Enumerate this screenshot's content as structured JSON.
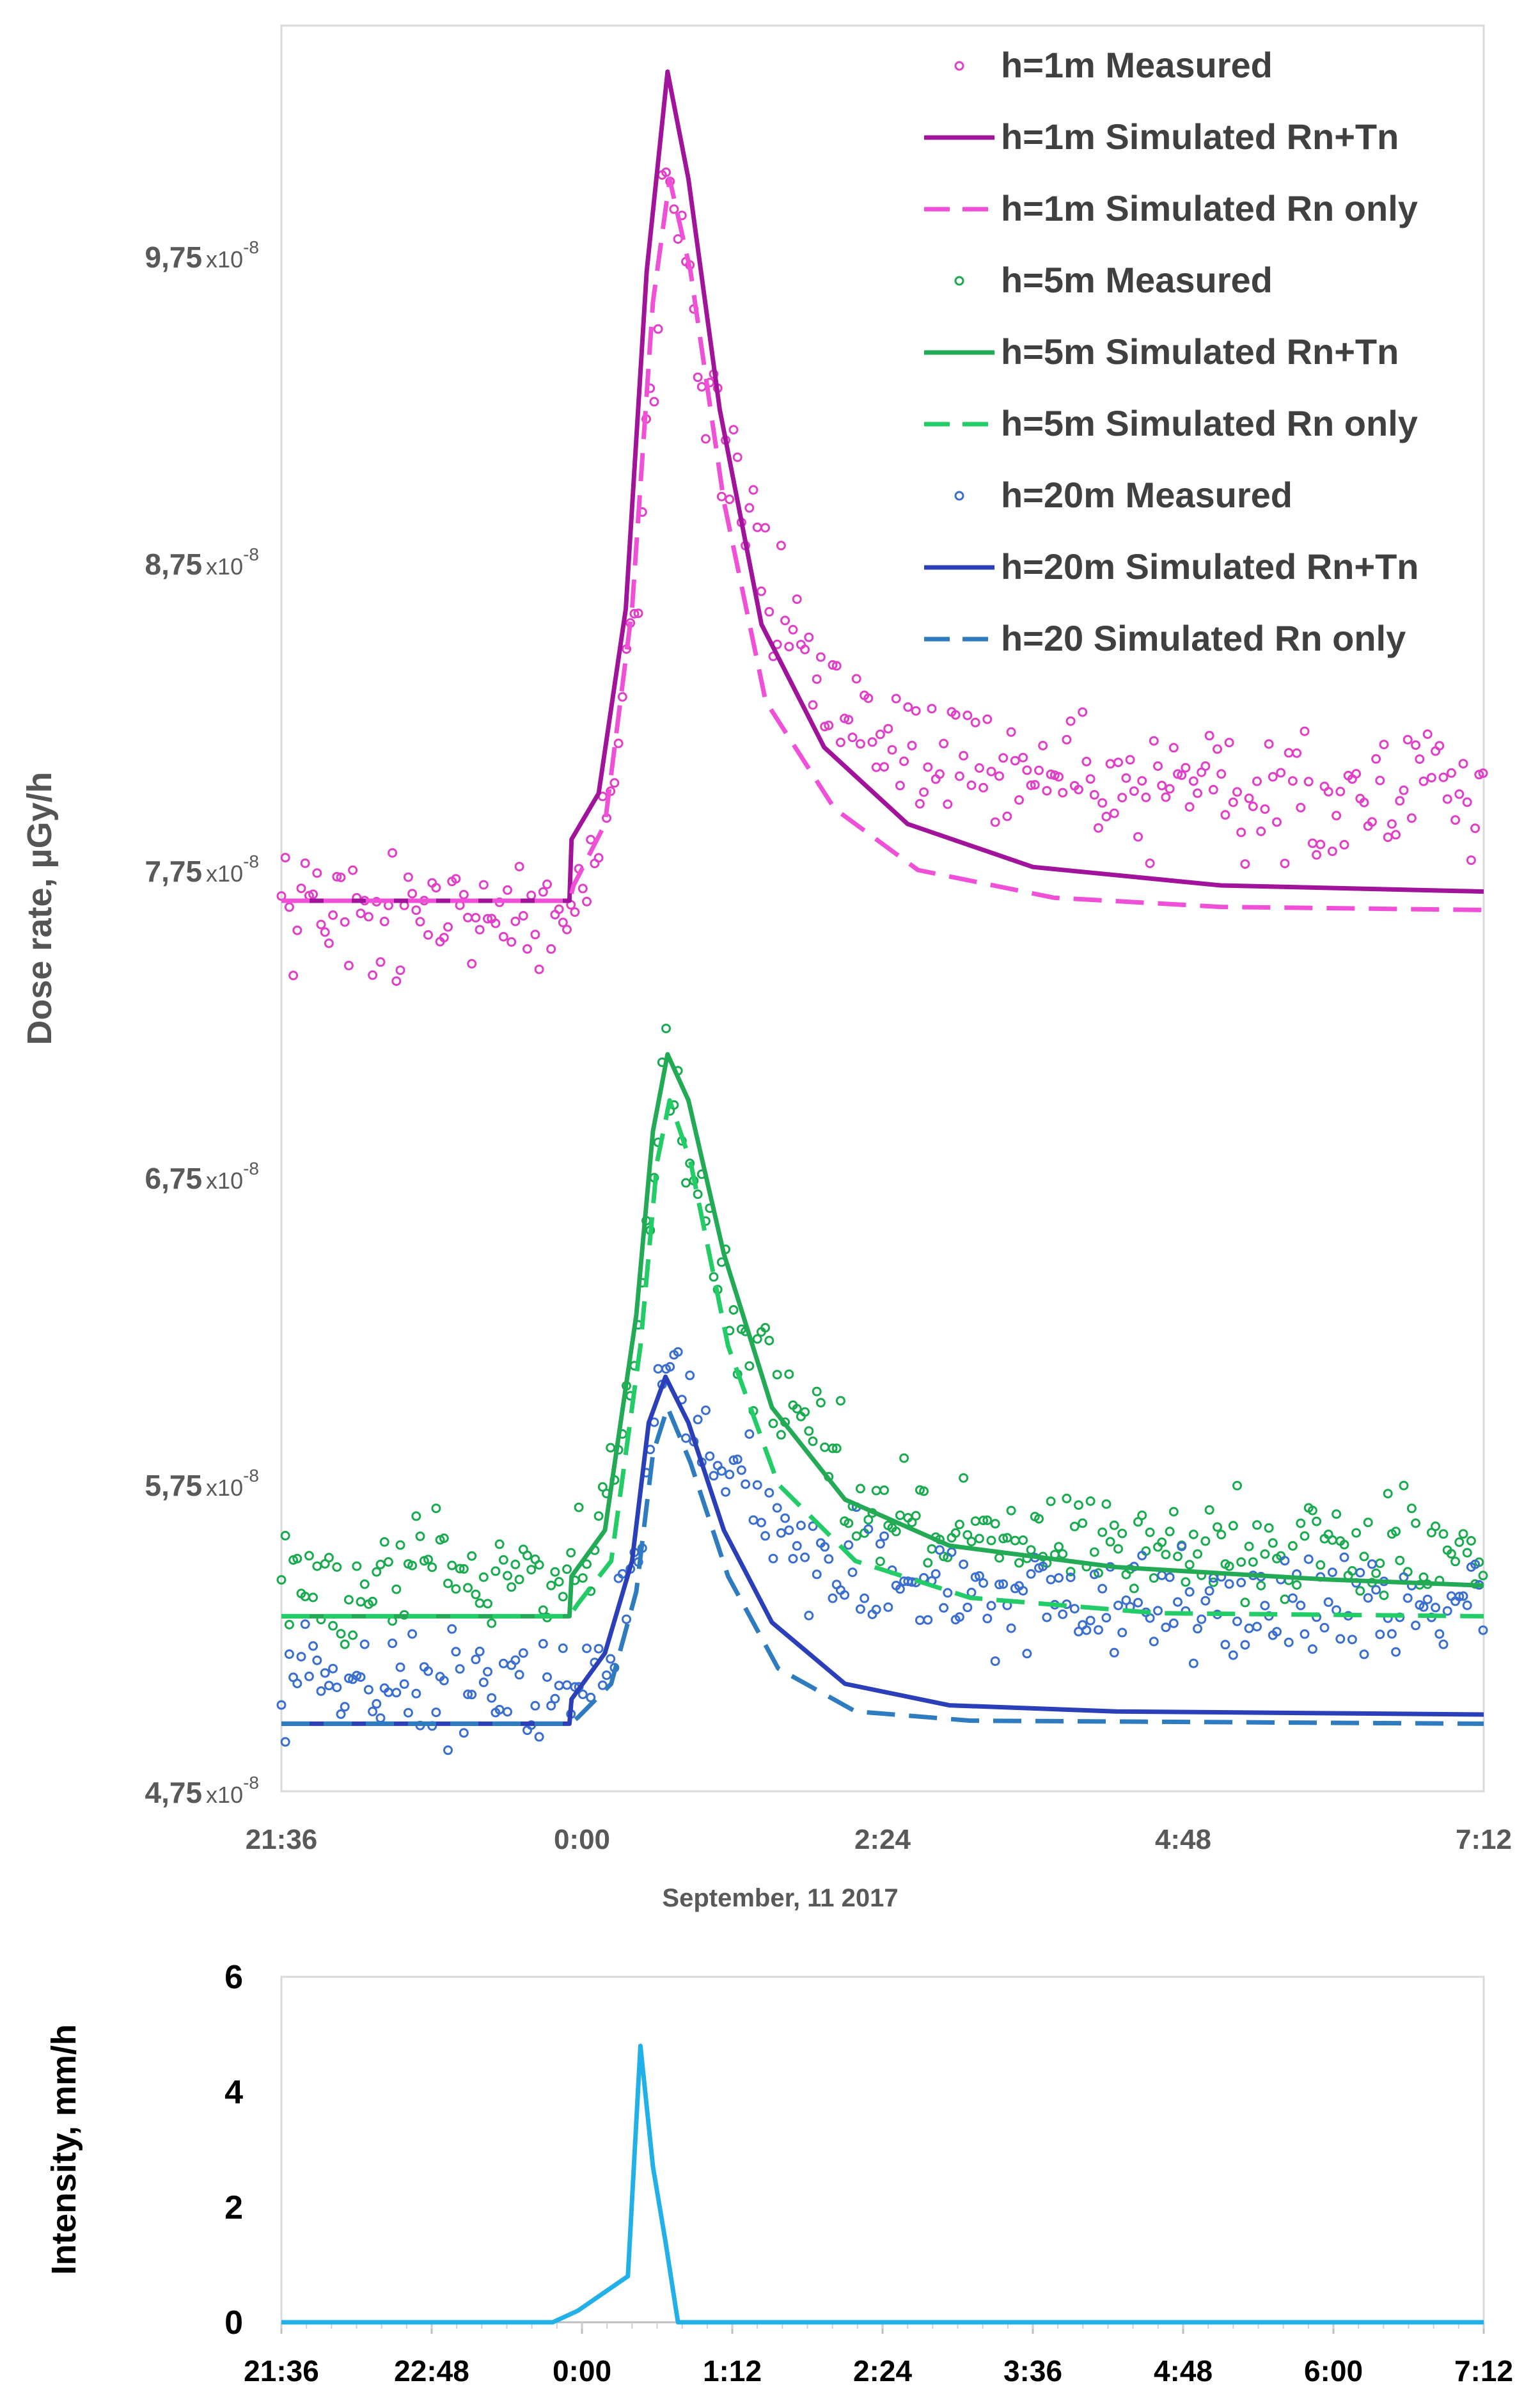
{
  "chart_data": [
    {
      "type": "scatter",
      "title": "",
      "xlabel": "September, 11 2017",
      "ylabel": "Dose rate, µGy/h",
      "x_unit": "minutes since 21:36",
      "xlim": [
        0,
        576
      ],
      "ylim": [
        4.75e-08,
        1.05e-07
      ],
      "x_ticks": [
        "21:36",
        "0:00",
        "2:24",
        "4:48",
        "7:12"
      ],
      "y_tick_labels": [
        {
          "value": 4.75e-08,
          "mantissa": "4,75",
          "times": "x10",
          "exp": "-8"
        },
        {
          "value": 5.75e-08,
          "mantissa": "5,75",
          "times": "x10",
          "exp": "-8"
        },
        {
          "value": 6.75e-08,
          "mantissa": "6,75",
          "times": "x10",
          "exp": "-8"
        },
        {
          "value": 7.75e-08,
          "mantissa": "7,75",
          "times": "x10",
          "exp": "-8"
        },
        {
          "value": 8.75e-08,
          "mantissa": "8,75",
          "times": "x10",
          "exp": "-8"
        },
        {
          "value": 9.75e-08,
          "mantissa": "9,75",
          "times": "x10",
          "exp": "-8"
        }
      ],
      "legend_position": "top-right",
      "series": [
        {
          "name": "h=1m Measured",
          "kind": "scatter",
          "color": "#e040c8",
          "base": 7.6e-08,
          "amp": 2.4e-08,
          "tail": 4e-09,
          "start": 137,
          "peak": 185,
          "noise": 1.8e-09
        },
        {
          "name": "h=1m Simulated Rn+Tn",
          "kind": "line",
          "dash": "solid",
          "color": "#a0139a",
          "points": [
            [
              0,
              7.65e-08
            ],
            [
              138,
              7.65e-08
            ],
            [
              139,
              7.85e-08
            ],
            [
              152,
              8e-08
            ],
            [
              165,
              8.6e-08
            ],
            [
              175,
              9.7e-08
            ],
            [
              185,
              1.035e-07
            ],
            [
              195,
              1e-07
            ],
            [
              210,
              9.25e-08
            ],
            [
              230,
              8.55e-08
            ],
            [
              260,
              8.15e-08
            ],
            [
              300,
              7.9e-08
            ],
            [
              360,
              7.76e-08
            ],
            [
              450,
              7.7e-08
            ],
            [
              576,
              7.68e-08
            ]
          ]
        },
        {
          "name": "h=1m Simulated Rn only",
          "kind": "line",
          "dash": "dashed",
          "color": "#f050d8",
          "points": [
            [
              0,
              7.65e-08
            ],
            [
              138,
              7.65e-08
            ],
            [
              140,
              7.7e-08
            ],
            [
              155,
              7.9e-08
            ],
            [
              168,
              8.6e-08
            ],
            [
              178,
              9.6e-08
            ],
            [
              186,
              1e-07
            ],
            [
              196,
              9.7e-08
            ],
            [
              212,
              8.95e-08
            ],
            [
              232,
              8.3e-08
            ],
            [
              265,
              7.95e-08
            ],
            [
              305,
              7.75e-08
            ],
            [
              370,
              7.66e-08
            ],
            [
              450,
              7.63e-08
            ],
            [
              576,
              7.62e-08
            ]
          ]
        },
        {
          "name": "h=5m Measured",
          "kind": "scatter",
          "color": "#1aaa50",
          "base": 5.45e-08,
          "amp": 1.75e-08,
          "tail": 1e-09,
          "start": 140,
          "peak": 183,
          "noise": 1.5e-09
        },
        {
          "name": "h=5m Simulated Rn+Tn",
          "kind": "line",
          "dash": "solid",
          "color": "#22aa55",
          "points": [
            [
              0,
              5.32e-08
            ],
            [
              138,
              5.32e-08
            ],
            [
              139,
              5.45e-08
            ],
            [
              155,
              5.6e-08
            ],
            [
              170,
              6.3e-08
            ],
            [
              178,
              6.9e-08
            ],
            [
              185,
              7.15e-08
            ],
            [
              195,
              7e-08
            ],
            [
              212,
              6.5e-08
            ],
            [
              235,
              6e-08
            ],
            [
              270,
              5.7e-08
            ],
            [
              320,
              5.55e-08
            ],
            [
              400,
              5.48e-08
            ],
            [
              500,
              5.44e-08
            ],
            [
              576,
              5.42e-08
            ]
          ]
        },
        {
          "name": "h=5m Simulated Rn only",
          "kind": "line",
          "dash": "dashed",
          "color": "#22cc66",
          "points": [
            [
              0,
              5.32e-08
            ],
            [
              138,
              5.32e-08
            ],
            [
              142,
              5.36e-08
            ],
            [
              158,
              5.5e-08
            ],
            [
              172,
              6.2e-08
            ],
            [
              180,
              6.8e-08
            ],
            [
              186,
              7e-08
            ],
            [
              196,
              6.8e-08
            ],
            [
              214,
              6.2e-08
            ],
            [
              238,
              5.75e-08
            ],
            [
              275,
              5.5e-08
            ],
            [
              330,
              5.38e-08
            ],
            [
              420,
              5.33e-08
            ],
            [
              576,
              5.32e-08
            ]
          ]
        },
        {
          "name": "h=20m Measured",
          "kind": "scatter",
          "color": "#3a6fd0",
          "base": 5.1e-08,
          "amp": 1.1e-08,
          "tail": 2.5e-09,
          "start": 140,
          "peak": 185,
          "noise": 1.5e-09
        },
        {
          "name": "h=20m Simulated Rn+Tn",
          "kind": "line",
          "dash": "solid",
          "color": "#2a3fb8",
          "points": [
            [
              0,
              4.97e-08
            ],
            [
              138,
              4.97e-08
            ],
            [
              139,
              5.05e-08
            ],
            [
              155,
              5.2e-08
            ],
            [
              168,
              5.5e-08
            ],
            [
              176,
              5.95e-08
            ],
            [
              184,
              6.1e-08
            ],
            [
              195,
              5.95e-08
            ],
            [
              212,
              5.6e-08
            ],
            [
              235,
              5.3e-08
            ],
            [
              270,
              5.1e-08
            ],
            [
              320,
              5.03e-08
            ],
            [
              400,
              5.01e-08
            ],
            [
              576,
              5e-08
            ]
          ]
        },
        {
          "name": "h=20 Simulated Rn only",
          "kind": "line",
          "dash": "dashed",
          "color": "#2e7bc0",
          "points": [
            [
              0,
              4.97e-08
            ],
            [
              138,
              4.97e-08
            ],
            [
              142,
              4.99e-08
            ],
            [
              158,
              5.1e-08
            ],
            [
              170,
              5.4e-08
            ],
            [
              178,
              5.85e-08
            ],
            [
              185,
              6e-08
            ],
            [
              196,
              5.82e-08
            ],
            [
              214,
              5.45e-08
            ],
            [
              238,
              5.15e-08
            ],
            [
              275,
              5.01e-08
            ],
            [
              330,
              4.98e-08
            ],
            [
              576,
              4.97e-08
            ]
          ]
        }
      ]
    },
    {
      "type": "line",
      "title": "",
      "xlabel": "",
      "ylabel": "Intensity, mm/h",
      "x_unit": "minutes since 21:36",
      "xlim": [
        0,
        576
      ],
      "ylim": [
        0,
        6
      ],
      "x_ticks": [
        "21:36",
        "22:48",
        "0:00",
        "1:12",
        "2:24",
        "3:36",
        "4:48",
        "6:00",
        "7:12"
      ],
      "y_ticks": [
        "0",
        "2",
        "4",
        "6"
      ],
      "series": [
        {
          "name": "Rain intensity",
          "color": "#22b0e8",
          "points": [
            [
              0,
              0
            ],
            [
              130,
              0
            ],
            [
              142,
              0.2
            ],
            [
              154,
              0.5
            ],
            [
              166,
              0.8
            ],
            [
              172,
              4.8
            ],
            [
              178,
              2.7
            ],
            [
              184,
              1.4
            ],
            [
              190,
              0
            ],
            [
              576,
              0
            ]
          ]
        }
      ]
    }
  ]
}
